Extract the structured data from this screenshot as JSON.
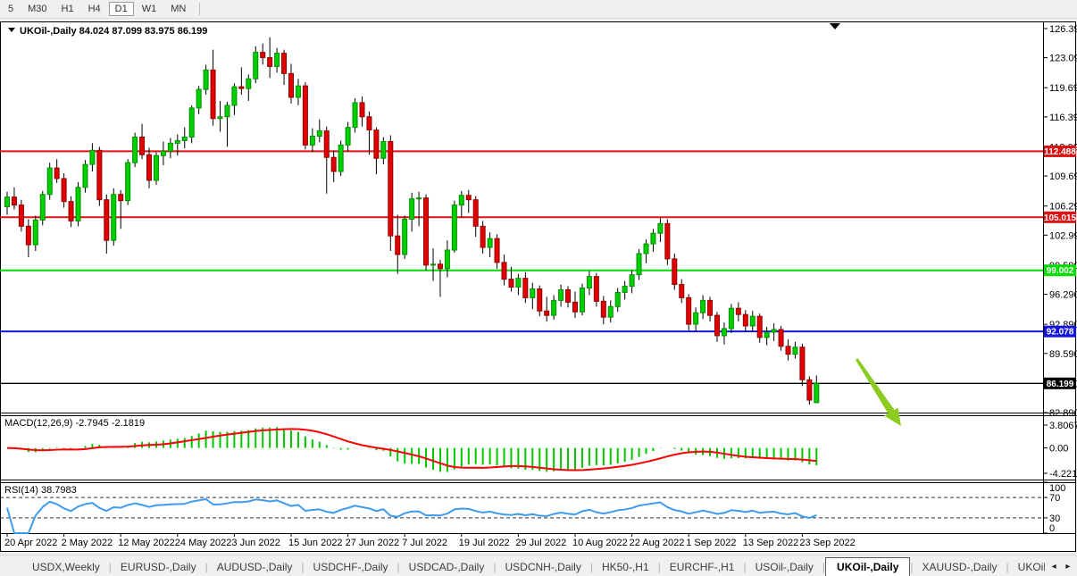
{
  "toolbar": {
    "timeframes": [
      {
        "label": "5",
        "active": false
      },
      {
        "label": "M30",
        "active": false
      },
      {
        "label": "H1",
        "active": false
      },
      {
        "label": "H4",
        "active": false
      },
      {
        "label": "D1",
        "active": true
      },
      {
        "label": "W1",
        "active": false
      },
      {
        "label": "MN",
        "active": false
      }
    ]
  },
  "chart": {
    "title_line": "UKOil-,Daily  84.024 87.099 83.975 86.199"
  },
  "price_axis": {
    "ticks": [
      "126.390",
      "123.090",
      "119.690",
      "116.390",
      "112.990",
      "109.690",
      "106.290",
      "102.990",
      "99.590",
      "96.290",
      "92.890",
      "89.590",
      "86.190",
      "82.890"
    ]
  },
  "hlines": [
    {
      "label": "112.488",
      "price": 112.488,
      "color": "#dd1111"
    },
    {
      "label": "105.015",
      "price": 105.015,
      "color": "#dd1111"
    },
    {
      "label": "99.002",
      "price": 99.002,
      "color": "#00dd00"
    },
    {
      "label": "92.078",
      "price": 92.078,
      "color": "#1414dd"
    },
    {
      "label": "86.199",
      "price": 86.199,
      "color": "#000000"
    }
  ],
  "macd": {
    "label": "MACD(12,26,9) -2.7945 -2.1819",
    "fast": 12,
    "slow": 26,
    "smooth": 9,
    "ticks": [
      "3.8067",
      "0.00",
      "-4.221"
    ]
  },
  "rsi": {
    "label": "RSI(14) 38.7983",
    "period": 14,
    "ticks": [
      "100",
      "70",
      "30",
      "0"
    ],
    "levels": [
      70,
      30
    ]
  },
  "date_axis": {
    "labels": [
      "20 Apr 2022",
      "2 May 2022",
      "12 May 2022",
      "24 May 2022",
      "3 Jun 2022",
      "15 Jun 2022",
      "27 Jun 2022",
      "7 Jul 2022",
      "19 Jul 2022",
      "29 Jul 2022",
      "10 Aug 2022",
      "22 Aug 2022",
      "1 Sep 2022",
      "13 Sep 2022",
      "23 Sep 2022"
    ]
  },
  "tabs": {
    "items": [
      {
        "label": "USDX,Weekly",
        "active": false
      },
      {
        "label": "EURUSD-,Daily",
        "active": false
      },
      {
        "label": "AUDUSD-,Daily",
        "active": false
      },
      {
        "label": "USDCHF-,Daily",
        "active": false
      },
      {
        "label": "USDCAD-,Daily",
        "active": false
      },
      {
        "label": "USDCNH-,Daily",
        "active": false
      },
      {
        "label": "HK50-,H1",
        "active": false
      },
      {
        "label": "EURCHF-,H1",
        "active": false
      },
      {
        "label": "USOil-,Daily",
        "active": false
      },
      {
        "label": "UKOil-,Daily",
        "active": true
      },
      {
        "label": "XAUUSD-,Daily",
        "active": false
      },
      {
        "label": "UKOil-,Da",
        "active": false
      }
    ],
    "scroll_left": "◂",
    "scroll_right": "▸"
  },
  "colors": {
    "bull_fill": "#00d000",
    "bull_stroke": "#008f00",
    "bear_fill": "#e30000",
    "bear_stroke": "#8f0000",
    "wick": "#000000",
    "macd_hist": "#00c800",
    "macd_signal": "#ff0000",
    "rsi_line": "#3e9bf0",
    "arrow": "#8ccb21"
  },
  "chart_data": {
    "type": "candlestick",
    "symbol": "UKOil-",
    "timeframe": "Daily",
    "last": {
      "open": 84.024,
      "high": 87.099,
      "low": 83.975,
      "close": 86.199
    },
    "y_axis_range": [
      82.89,
      126.39
    ],
    "candles": [
      [
        106.2,
        107.9,
        105.3,
        107.3
      ],
      [
        107.3,
        108.4,
        105.9,
        106.4
      ],
      [
        106.4,
        107.0,
        103.4,
        104.0
      ],
      [
        104.0,
        104.8,
        100.5,
        101.9
      ],
      [
        101.9,
        105.2,
        101.2,
        104.7
      ],
      [
        104.7,
        108.0,
        104.1,
        107.6
      ],
      [
        107.6,
        111.2,
        107.0,
        110.6
      ],
      [
        110.6,
        111.6,
        108.9,
        109.4
      ],
      [
        109.4,
        110.0,
        106.1,
        106.8
      ],
      [
        106.8,
        107.4,
        103.9,
        104.6
      ],
      [
        104.6,
        109.0,
        104.0,
        108.4
      ],
      [
        108.4,
        111.5,
        107.8,
        111.0
      ],
      [
        111.0,
        113.4,
        110.2,
        112.6
      ],
      [
        112.6,
        113.0,
        106.3,
        107.0
      ],
      [
        107.0,
        107.6,
        100.9,
        102.4
      ],
      [
        102.4,
        108.3,
        101.8,
        107.6
      ],
      [
        107.6,
        108.1,
        103.7,
        106.9
      ],
      [
        106.9,
        111.6,
        106.4,
        111.2
      ],
      [
        111.2,
        114.6,
        110.7,
        114.1
      ],
      [
        114.1,
        115.6,
        111.6,
        112.1
      ],
      [
        112.1,
        112.9,
        108.3,
        109.2
      ],
      [
        109.2,
        112.4,
        108.7,
        112.0
      ],
      [
        112.0,
        113.6,
        110.9,
        112.5
      ],
      [
        112.5,
        114.0,
        111.7,
        113.4
      ],
      [
        113.4,
        114.4,
        112.0,
        113.7
      ],
      [
        113.7,
        115.2,
        112.8,
        114.1
      ],
      [
        114.1,
        117.7,
        113.4,
        117.4
      ],
      [
        117.4,
        119.9,
        116.7,
        119.5
      ],
      [
        119.5,
        122.3,
        118.9,
        121.7
      ],
      [
        121.7,
        124.0,
        115.4,
        116.2
      ],
      [
        116.2,
        118.2,
        114.7,
        116.4
      ],
      [
        116.4,
        118.1,
        113.0,
        117.7
      ],
      [
        117.7,
        120.2,
        116.6,
        119.8
      ],
      [
        119.8,
        122.0,
        118.9,
        119.6
      ],
      [
        119.6,
        121.2,
        118.2,
        120.7
      ],
      [
        120.7,
        124.4,
        120.2,
        123.7
      ],
      [
        123.7,
        124.7,
        122.3,
        123.1
      ],
      [
        123.1,
        125.4,
        120.8,
        122.1
      ],
      [
        122.1,
        124.2,
        121.4,
        123.6
      ],
      [
        123.6,
        124.0,
        120.0,
        121.3
      ],
      [
        121.3,
        122.4,
        117.9,
        118.6
      ],
      [
        118.6,
        120.7,
        117.7,
        119.9
      ],
      [
        119.9,
        120.3,
        112.7,
        113.2
      ],
      [
        113.2,
        115.1,
        112.4,
        114.2
      ],
      [
        114.2,
        116.1,
        113.5,
        114.8
      ],
      [
        114.8,
        115.3,
        107.7,
        111.8
      ],
      [
        111.8,
        112.6,
        109.0,
        110.2
      ],
      [
        110.2,
        113.7,
        109.7,
        113.2
      ],
      [
        113.2,
        115.8,
        112.5,
        115.2
      ],
      [
        115.2,
        118.5,
        114.6,
        118.0
      ],
      [
        118.0,
        118.7,
        115.3,
        116.4
      ],
      [
        116.4,
        117.0,
        112.1,
        114.9
      ],
      [
        114.9,
        115.2,
        109.9,
        111.7
      ],
      [
        111.7,
        114.1,
        111.0,
        113.6
      ],
      [
        113.6,
        114.3,
        101.2,
        102.9
      ],
      [
        102.9,
        105.3,
        98.6,
        100.8
      ],
      [
        100.8,
        105.2,
        100.3,
        104.8
      ],
      [
        104.8,
        107.8,
        103.4,
        107.1
      ],
      [
        107.1,
        107.9,
        104.0,
        107.2
      ],
      [
        107.2,
        107.6,
        99.0,
        99.6
      ],
      [
        99.6,
        101.5,
        97.8,
        99.7
      ],
      [
        99.7,
        100.2,
        96.0,
        99.2
      ],
      [
        99.2,
        102.4,
        98.2,
        101.3
      ],
      [
        101.3,
        106.9,
        101.0,
        106.4
      ],
      [
        106.4,
        108.0,
        105.0,
        107.5
      ],
      [
        107.5,
        108.1,
        105.5,
        107.0
      ],
      [
        107.0,
        107.4,
        102.8,
        104.0
      ],
      [
        104.0,
        104.6,
        100.9,
        101.6
      ],
      [
        101.6,
        103.3,
        100.5,
        102.6
      ],
      [
        102.6,
        103.1,
        99.2,
        99.9
      ],
      [
        99.9,
        100.8,
        97.3,
        98.0
      ],
      [
        98.0,
        99.4,
        96.6,
        97.1
      ],
      [
        97.1,
        98.6,
        96.2,
        98.1
      ],
      [
        98.1,
        98.8,
        95.3,
        95.9
      ],
      [
        95.9,
        97.6,
        94.6,
        96.9
      ],
      [
        96.9,
        97.3,
        93.8,
        94.4
      ],
      [
        94.4,
        96.0,
        93.2,
        93.9
      ],
      [
        93.9,
        96.2,
        93.4,
        95.6
      ],
      [
        95.6,
        97.4,
        94.9,
        96.8
      ],
      [
        96.8,
        97.2,
        94.8,
        95.4
      ],
      [
        95.4,
        96.6,
        93.6,
        94.3
      ],
      [
        94.3,
        97.5,
        93.9,
        97.0
      ],
      [
        97.0,
        98.9,
        96.2,
        98.3
      ],
      [
        98.3,
        98.7,
        94.9,
        95.5
      ],
      [
        95.5,
        96.1,
        92.9,
        93.7
      ],
      [
        93.7,
        95.6,
        93.1,
        94.9
      ],
      [
        94.9,
        97.0,
        94.3,
        96.5
      ],
      [
        96.5,
        97.8,
        95.7,
        97.2
      ],
      [
        97.2,
        99.0,
        96.4,
        98.5
      ],
      [
        98.5,
        101.4,
        97.9,
        100.9
      ],
      [
        100.9,
        102.5,
        99.8,
        102.0
      ],
      [
        102.0,
        103.7,
        101.1,
        103.2
      ],
      [
        103.2,
        104.9,
        102.2,
        104.3
      ],
      [
        104.3,
        104.8,
        99.6,
        100.3
      ],
      [
        100.3,
        100.9,
        96.8,
        97.4
      ],
      [
        97.4,
        98.0,
        95.3,
        95.9
      ],
      [
        95.9,
        96.3,
        92.2,
        92.9
      ],
      [
        92.9,
        94.8,
        92.0,
        94.2
      ],
      [
        94.2,
        96.2,
        93.5,
        95.6
      ],
      [
        95.6,
        96.0,
        93.2,
        93.9
      ],
      [
        93.9,
        94.3,
        90.9,
        91.6
      ],
      [
        91.6,
        93.1,
        90.6,
        92.4
      ],
      [
        92.4,
        95.2,
        91.9,
        94.7
      ],
      [
        94.7,
        95.4,
        93.2,
        94.0
      ],
      [
        94.0,
        94.5,
        92.1,
        92.7
      ],
      [
        92.7,
        94.4,
        92.0,
        93.8
      ],
      [
        93.8,
        94.1,
        90.8,
        91.4
      ],
      [
        91.4,
        92.6,
        90.5,
        92.0
      ],
      [
        92.0,
        93.0,
        91.0,
        92.3
      ],
      [
        92.3,
        92.7,
        89.9,
        90.4
      ],
      [
        90.4,
        91.2,
        88.8,
        89.5
      ],
      [
        89.5,
        90.9,
        89.0,
        90.3
      ],
      [
        90.3,
        90.7,
        85.9,
        86.6
      ],
      [
        86.6,
        87.0,
        83.8,
        84.3
      ],
      [
        84.024,
        87.099,
        83.975,
        86.199
      ]
    ]
  }
}
